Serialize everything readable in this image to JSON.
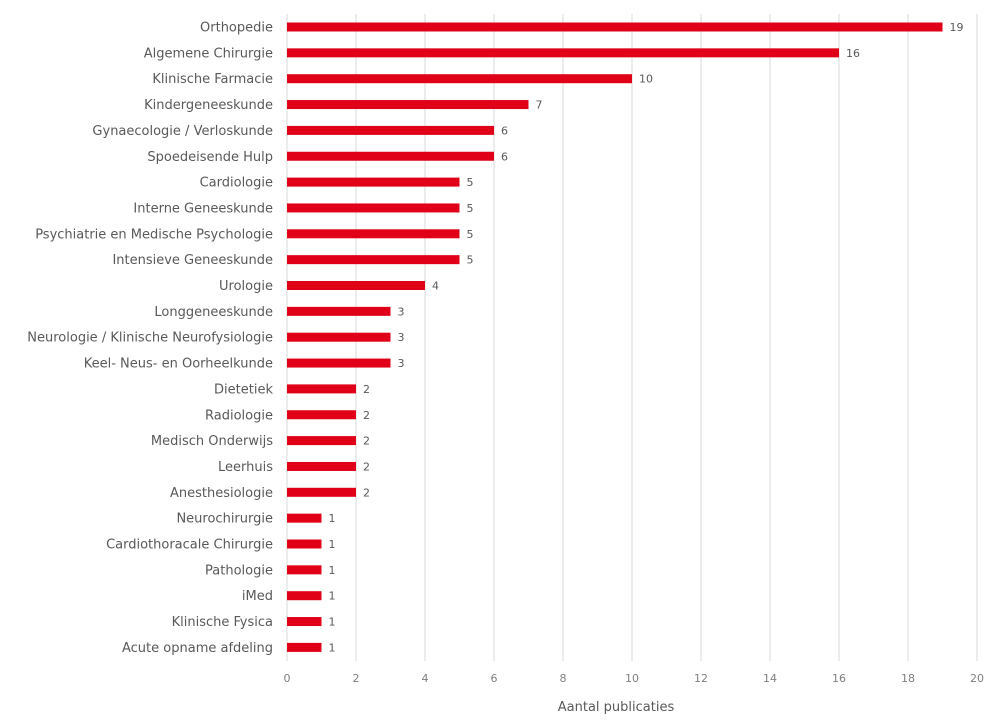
{
  "chart_data": {
    "type": "bar",
    "orientation": "horizontal",
    "categories": [
      "Orthopedie",
      "Algemene Chirurgie",
      "Klinische Farmacie",
      "Kindergeneeskunde",
      "Gynaecologie / Verloskunde",
      "Spoedeisende Hulp",
      "Cardiologie",
      "Interne Geneeskunde",
      "Psychiatrie en Medische Psychologie",
      "Intensieve Geneeskunde",
      "Urologie",
      "Longgeneeskunde",
      "Neurologie / Klinische Neurofysiologie",
      "Keel- Neus- en Oorheelkunde",
      "Dietetiek",
      "Radiologie",
      "Medisch Onderwijs",
      "Leerhuis",
      "Anesthesiologie",
      "Neurochirurgie",
      "Cardiothoracale Chirurgie",
      "Pathologie",
      "iMed",
      "Klinische Fysica",
      "Acute opname afdeling"
    ],
    "values": [
      19,
      16,
      10,
      7,
      6,
      6,
      5,
      5,
      5,
      5,
      4,
      3,
      3,
      3,
      2,
      2,
      2,
      2,
      2,
      1,
      1,
      1,
      1,
      1,
      1
    ],
    "title": "",
    "xlabel": "Aantal publicaties",
    "ylabel": "",
    "xlim": [
      0,
      20
    ],
    "xticks": [
      0,
      2,
      4,
      6,
      8,
      10,
      12,
      14,
      16,
      18,
      20
    ],
    "grid": "vertical",
    "legend": "none",
    "bar_color": "#e00017",
    "grid_color": "#d9d9d9",
    "text_color": "#595959"
  }
}
